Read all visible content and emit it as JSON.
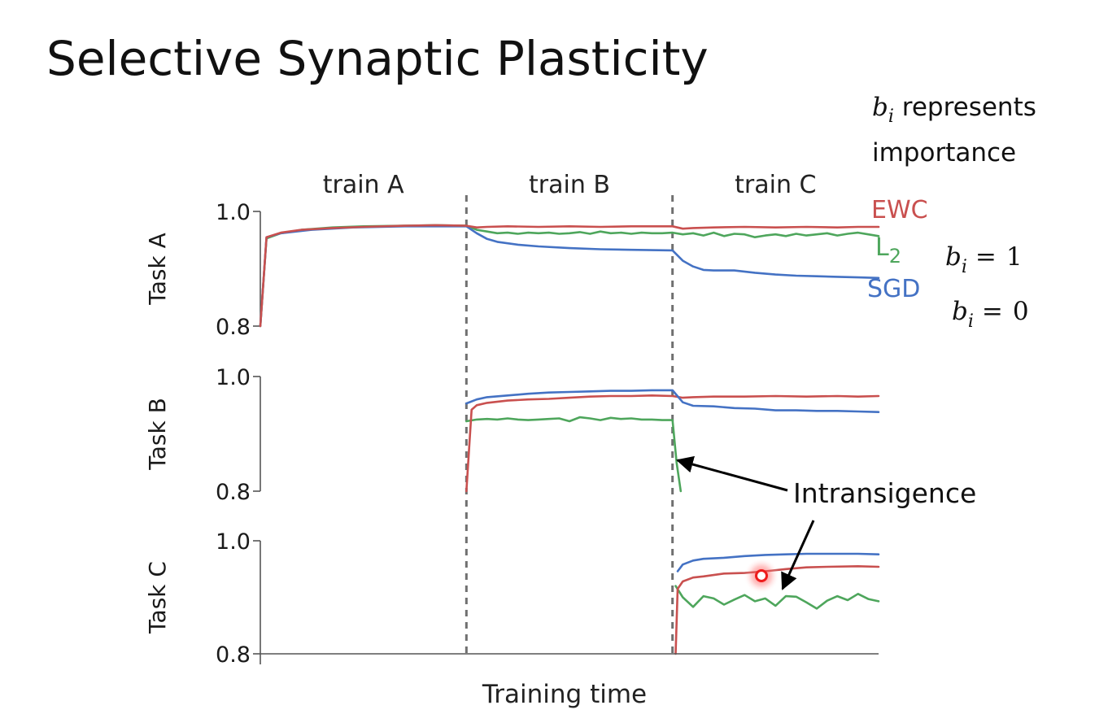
{
  "slide": {
    "title": "Selective Synaptic Plasticity"
  },
  "notes": {
    "b_symbol": "b",
    "b_subscript": "i",
    "importance_line1": " represents",
    "importance_line2": "importance",
    "eq_value_1": "1",
    "eq_value_0": "0"
  },
  "annotation": {
    "text": "Intransigence"
  },
  "highlight_color": "#ff2a2a",
  "chart_data": {
    "type": "line",
    "xlabel": "Training time",
    "phases": [
      "train A",
      "train B",
      "train C"
    ],
    "x_range": [
      0,
      60
    ],
    "phase_boundaries": [
      20,
      40
    ],
    "colors": {
      "EWC": "#c9504f",
      "L2": "#4ea65c",
      "SGD": "#4472c4"
    },
    "legend": [
      {
        "key": "EWC",
        "label": "EWC",
        "color": "#c9504f"
      },
      {
        "key": "L2",
        "label": "L",
        "sub": "2",
        "color": "#4ea65c"
      },
      {
        "key": "SGD",
        "label": "SGD",
        "color": "#4472c4"
      }
    ],
    "panels": [
      {
        "ylabel": "Task A",
        "ylim": [
          0.8,
          1.0
        ],
        "yticks": [
          "1.0",
          "0.8"
        ],
        "series": [
          {
            "key": "L2",
            "values": [
              [
                0,
                0.8
              ],
              [
                0.6,
                0.953
              ],
              [
                2,
                0.962
              ],
              [
                4,
                0.968
              ],
              [
                7,
                0.972
              ],
              [
                10,
                0.974
              ],
              [
                14,
                0.975
              ],
              [
                17,
                0.976
              ],
              [
                20,
                0.975
              ],
              [
                21,
                0.968
              ],
              [
                22,
                0.965
              ],
              [
                23,
                0.962
              ],
              [
                24,
                0.963
              ],
              [
                25,
                0.961
              ],
              [
                26,
                0.963
              ],
              [
                27,
                0.962
              ],
              [
                28,
                0.963
              ],
              [
                29,
                0.961
              ],
              [
                30,
                0.962
              ],
              [
                31,
                0.964
              ],
              [
                32,
                0.961
              ],
              [
                33,
                0.965
              ],
              [
                34,
                0.962
              ],
              [
                35,
                0.963
              ],
              [
                36,
                0.961
              ],
              [
                37,
                0.963
              ],
              [
                38,
                0.962
              ],
              [
                39,
                0.962
              ],
              [
                40,
                0.963
              ],
              [
                41,
                0.96
              ],
              [
                42,
                0.962
              ],
              [
                43,
                0.958
              ],
              [
                44,
                0.963
              ],
              [
                45,
                0.957
              ],
              [
                46,
                0.961
              ],
              [
                47,
                0.96
              ],
              [
                48,
                0.955
              ],
              [
                49,
                0.958
              ],
              [
                50,
                0.96
              ],
              [
                51,
                0.957
              ],
              [
                52,
                0.961
              ],
              [
                53,
                0.958
              ],
              [
                54,
                0.96
              ],
              [
                55,
                0.962
              ],
              [
                56,
                0.958
              ],
              [
                57,
                0.961
              ],
              [
                58,
                0.963
              ],
              [
                59,
                0.96
              ],
              [
                60,
                0.957
              ]
            ]
          },
          {
            "key": "SGD",
            "values": [
              [
                0,
                0.8
              ],
              [
                0.6,
                0.955
              ],
              [
                2,
                0.962
              ],
              [
                5,
                0.968
              ],
              [
                9,
                0.972
              ],
              [
                14,
                0.974
              ],
              [
                20,
                0.974
              ],
              [
                21,
                0.962
              ],
              [
                22,
                0.952
              ],
              [
                23,
                0.947
              ],
              [
                25,
                0.942
              ],
              [
                27,
                0.939
              ],
              [
                30,
                0.936
              ],
              [
                33,
                0.934
              ],
              [
                36,
                0.933
              ],
              [
                40,
                0.932
              ],
              [
                41,
                0.914
              ],
              [
                42,
                0.904
              ],
              [
                43,
                0.898
              ],
              [
                44,
                0.897
              ],
              [
                46,
                0.897
              ],
              [
                48,
                0.893
              ],
              [
                50,
                0.89
              ],
              [
                52,
                0.888
              ],
              [
                54,
                0.887
              ],
              [
                56,
                0.886
              ],
              [
                58,
                0.885
              ],
              [
                60,
                0.884
              ]
            ]
          },
          {
            "key": "EWC",
            "values": [
              [
                0,
                0.8
              ],
              [
                0.6,
                0.955
              ],
              [
                2,
                0.963
              ],
              [
                4,
                0.968
              ],
              [
                7,
                0.971
              ],
              [
                10,
                0.973
              ],
              [
                14,
                0.975
              ],
              [
                17,
                0.976
              ],
              [
                20,
                0.975
              ],
              [
                21,
                0.972
              ],
              [
                22,
                0.973
              ],
              [
                24,
                0.974
              ],
              [
                27,
                0.973
              ],
              [
                30,
                0.974
              ],
              [
                33,
                0.973
              ],
              [
                36,
                0.974
              ],
              [
                40,
                0.974
              ],
              [
                41,
                0.97
              ],
              [
                42,
                0.971
              ],
              [
                44,
                0.972
              ],
              [
                47,
                0.973
              ],
              [
                50,
                0.972
              ],
              [
                53,
                0.973
              ],
              [
                56,
                0.972
              ],
              [
                58,
                0.973
              ],
              [
                60,
                0.973
              ]
            ]
          }
        ]
      },
      {
        "ylabel": "Task B",
        "ylim": [
          0.8,
          1.0
        ],
        "yticks": [
          "1.0",
          "0.8"
        ],
        "series": [
          {
            "key": "L2",
            "values": [
              [
                20,
                0.922
              ],
              [
                21,
                0.925
              ],
              [
                22,
                0.926
              ],
              [
                23,
                0.925
              ],
              [
                24,
                0.927
              ],
              [
                25,
                0.925
              ],
              [
                26,
                0.924
              ],
              [
                27,
                0.925
              ],
              [
                28,
                0.926
              ],
              [
                29,
                0.927
              ],
              [
                30,
                0.922
              ],
              [
                31,
                0.929
              ],
              [
                32,
                0.927
              ],
              [
                33,
                0.924
              ],
              [
                34,
                0.928
              ],
              [
                35,
                0.926
              ],
              [
                36,
                0.927
              ],
              [
                37,
                0.925
              ],
              [
                38,
                0.925
              ],
              [
                39,
                0.924
              ],
              [
                40,
                0.924
              ],
              [
                40.4,
                0.85
              ],
              [
                40.8,
                0.8
              ]
            ]
          },
          {
            "key": "EWC",
            "values": [
              [
                20,
                0.8
              ],
              [
                20.5,
                0.942
              ],
              [
                21,
                0.95
              ],
              [
                22,
                0.954
              ],
              [
                24,
                0.958
              ],
              [
                26,
                0.96
              ],
              [
                28,
                0.961
              ],
              [
                30,
                0.963
              ],
              [
                32,
                0.965
              ],
              [
                34,
                0.966
              ],
              [
                36,
                0.966
              ],
              [
                38,
                0.967
              ],
              [
                40,
                0.966
              ],
              [
                41,
                0.963
              ],
              [
                42,
                0.964
              ],
              [
                44,
                0.965
              ],
              [
                47,
                0.965
              ],
              [
                50,
                0.966
              ],
              [
                53,
                0.965
              ],
              [
                56,
                0.966
              ],
              [
                58,
                0.965
              ],
              [
                60,
                0.966
              ]
            ]
          },
          {
            "key": "SGD",
            "values": [
              [
                20,
                0.953
              ],
              [
                21,
                0.96
              ],
              [
                22,
                0.964
              ],
              [
                24,
                0.967
              ],
              [
                26,
                0.97
              ],
              [
                28,
                0.972
              ],
              [
                30,
                0.973
              ],
              [
                32,
                0.974
              ],
              [
                34,
                0.975
              ],
              [
                36,
                0.975
              ],
              [
                38,
                0.976
              ],
              [
                40,
                0.976
              ],
              [
                41,
                0.955
              ],
              [
                42,
                0.949
              ],
              [
                44,
                0.948
              ],
              [
                46,
                0.945
              ],
              [
                48,
                0.944
              ],
              [
                50,
                0.941
              ],
              [
                52,
                0.941
              ],
              [
                54,
                0.94
              ],
              [
                56,
                0.94
              ],
              [
                58,
                0.939
              ],
              [
                60,
                0.938
              ]
            ]
          }
        ]
      },
      {
        "ylabel": "Task C",
        "ylim": [
          0.8,
          1.0
        ],
        "yticks": [
          "1.0",
          "0.8"
        ],
        "series": [
          {
            "key": "L2",
            "values": [
              [
                40.3,
                0.92
              ],
              [
                41,
                0.9
              ],
              [
                42,
                0.883
              ],
              [
                43,
                0.902
              ],
              [
                44,
                0.898
              ],
              [
                45,
                0.887
              ],
              [
                46,
                0.896
              ],
              [
                47,
                0.904
              ],
              [
                48,
                0.893
              ],
              [
                49,
                0.898
              ],
              [
                50,
                0.885
              ],
              [
                51,
                0.902
              ],
              [
                52,
                0.901
              ],
              [
                53,
                0.891
              ],
              [
                54,
                0.88
              ],
              [
                55,
                0.894
              ],
              [
                56,
                0.902
              ],
              [
                57,
                0.895
              ],
              [
                58,
                0.906
              ],
              [
                59,
                0.897
              ],
              [
                60,
                0.893
              ]
            ]
          },
          {
            "key": "SGD",
            "values": [
              [
                40.5,
                0.946
              ],
              [
                41,
                0.958
              ],
              [
                42,
                0.965
              ],
              [
                43,
                0.968
              ],
              [
                45,
                0.97
              ],
              [
                47,
                0.973
              ],
              [
                49,
                0.975
              ],
              [
                51,
                0.976
              ],
              [
                53,
                0.977
              ],
              [
                56,
                0.977
              ],
              [
                58,
                0.977
              ],
              [
                60,
                0.976
              ]
            ]
          },
          {
            "key": "EWC",
            "values": [
              [
                40.3,
                0.8
              ],
              [
                40.5,
                0.915
              ],
              [
                41,
                0.928
              ],
              [
                42,
                0.935
              ],
              [
                43,
                0.937
              ],
              [
                45,
                0.942
              ],
              [
                47,
                0.943
              ],
              [
                49,
                0.946
              ],
              [
                51,
                0.95
              ],
              [
                53,
                0.953
              ],
              [
                55,
                0.954
              ],
              [
                58,
                0.955
              ],
              [
                60,
                0.954
              ]
            ]
          }
        ]
      }
    ]
  }
}
